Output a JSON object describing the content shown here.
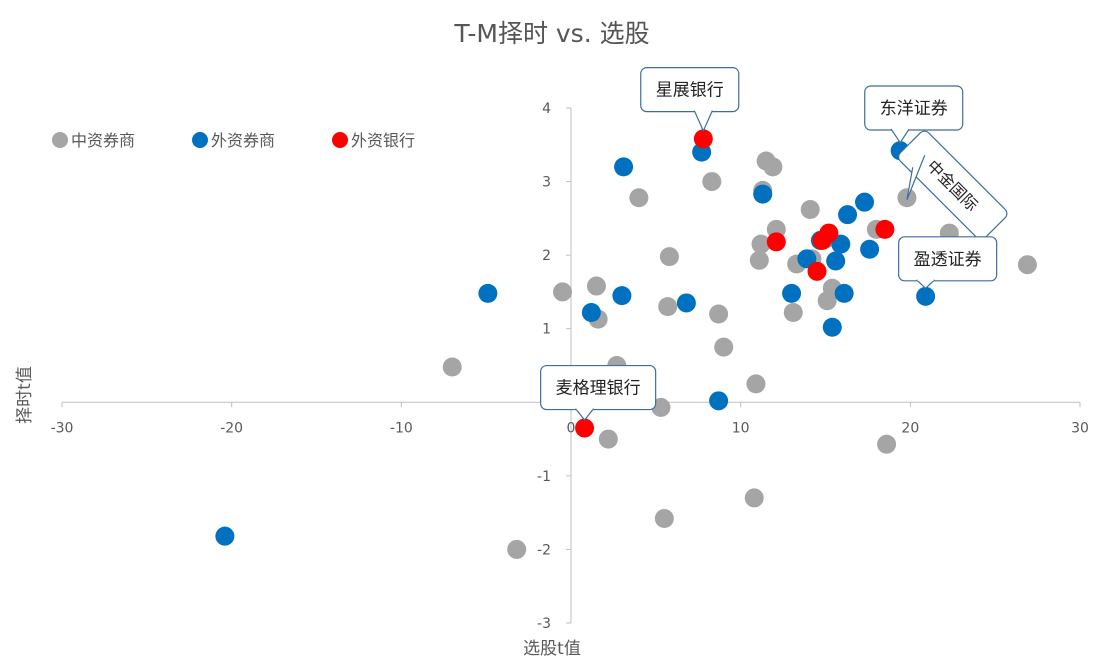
{
  "chart_data": {
    "type": "scatter",
    "title": "T-M择时 vs. 选股",
    "xlabel": "选股t值",
    "ylabel": "择时t值",
    "xlim": [
      -30,
      30
    ],
    "ylim": [
      -3,
      4
    ],
    "xticks": [
      "-30",
      "-20",
      "-10",
      "0",
      "10",
      "20",
      "30"
    ],
    "yticks": [
      "-3",
      "-2",
      "-1",
      "0",
      "1",
      "2",
      "3",
      "4"
    ],
    "legend_position": "top-left",
    "series": [
      {
        "name": "中资券商",
        "color": "#A5A5A5",
        "points": [
          [
            -7,
            0.48
          ],
          [
            -3.2,
            -2.0
          ],
          [
            -0.5,
            1.5
          ],
          [
            1.5,
            1.58
          ],
          [
            1.6,
            1.13
          ],
          [
            2.7,
            0.5
          ],
          [
            2.2,
            -0.5
          ],
          [
            4,
            2.78
          ],
          [
            5.3,
            -0.07
          ],
          [
            5.5,
            -1.58
          ],
          [
            5.7,
            1.3
          ],
          [
            5.8,
            1.98
          ],
          [
            8.3,
            3.0
          ],
          [
            8.7,
            1.2
          ],
          [
            9,
            0.75
          ],
          [
            10.8,
            -1.3
          ],
          [
            10.9,
            0.25
          ],
          [
            11.1,
            1.93
          ],
          [
            11.2,
            2.15
          ],
          [
            11.3,
            2.88
          ],
          [
            11.5,
            3.28
          ],
          [
            11.9,
            3.2
          ],
          [
            12.1,
            2.35
          ],
          [
            13.1,
            1.22
          ],
          [
            13.3,
            1.88
          ],
          [
            14.1,
            2.62
          ],
          [
            14.2,
            1.95
          ],
          [
            15.0,
            2.22
          ],
          [
            15.1,
            1.38
          ],
          [
            15.4,
            1.55
          ],
          [
            18.0,
            2.35
          ],
          [
            18.6,
            -0.57
          ],
          [
            19.8,
            2.78
          ],
          [
            22.3,
            2.3
          ],
          [
            24.9,
            2.55
          ],
          [
            26.9,
            1.87
          ]
        ]
      },
      {
        "name": "外资券商",
        "color": "#0070C0",
        "points": [
          [
            -20.4,
            -1.82
          ],
          [
            -4.9,
            1.48
          ],
          [
            1.2,
            1.22
          ],
          [
            3,
            1.45
          ],
          [
            3.1,
            3.2
          ],
          [
            6.8,
            1.35
          ],
          [
            7.7,
            3.4
          ],
          [
            8.7,
            0.02
          ],
          [
            11.3,
            2.83
          ],
          [
            13,
            1.48
          ],
          [
            13.9,
            1.95
          ],
          [
            14.7,
            2.2
          ],
          [
            15.4,
            1.02
          ],
          [
            15.6,
            1.92
          ],
          [
            15.9,
            2.15
          ],
          [
            16.1,
            1.48
          ],
          [
            16.3,
            2.55
          ],
          [
            17.3,
            2.72
          ],
          [
            17.6,
            2.08
          ],
          [
            19.4,
            3.42
          ],
          [
            20.4,
            2.03
          ],
          [
            20.9,
            1.44
          ]
        ]
      },
      {
        "name": "外资银行",
        "color": "#FF0000",
        "points": [
          [
            0.8,
            -0.35
          ],
          [
            7.8,
            3.58
          ],
          [
            12.1,
            2.18
          ],
          [
            14.5,
            1.78
          ],
          [
            14.8,
            2.2
          ],
          [
            15.2,
            2.3
          ],
          [
            18.5,
            2.35
          ]
        ]
      }
    ],
    "annotations": [
      {
        "text": "星展银行",
        "x": 7.8,
        "y": 3.58,
        "rotated": false,
        "box_x": 7,
        "box_y": 4.25
      },
      {
        "text": "东洋证券",
        "x": 19.4,
        "y": 3.42,
        "rotated": false,
        "box_x": 20.2,
        "box_y": 4.0
      },
      {
        "text": "中金国际",
        "x": 19.8,
        "y": 2.78,
        "rotated": true,
        "box_x": 22.5,
        "box_y": 2.95
      },
      {
        "text": "盈透证券",
        "x": 20.9,
        "y": 1.44,
        "rotated": false,
        "box_x": 22.2,
        "box_y": 1.95
      },
      {
        "text": "麦格理银行",
        "x": 0.8,
        "y": -0.35,
        "rotated": false,
        "box_x": 1.6,
        "box_y": 0.2
      }
    ]
  }
}
